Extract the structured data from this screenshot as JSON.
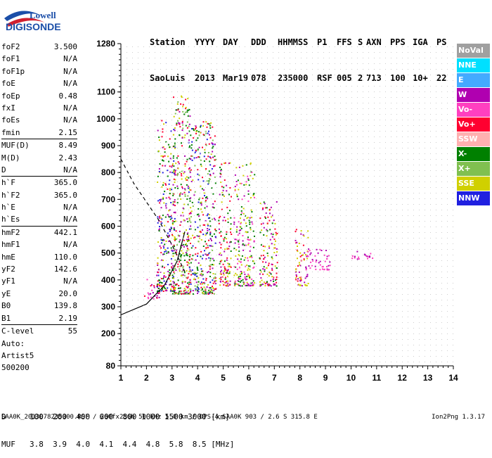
{
  "logo": {
    "line1": "Lowell",
    "line2": "DIGISONDE"
  },
  "header": {
    "labels": [
      "Station",
      "YYYY",
      "DAY",
      "DDD",
      "HHMMSS",
      "P1",
      "FFS",
      "S",
      "AXN",
      "PPS",
      "IGA",
      "PS"
    ],
    "values": [
      "SaoLuis",
      "2013",
      "Mar19",
      "078",
      "235000",
      "RSF",
      "005",
      "2",
      "713",
      "100",
      "10+",
      "22"
    ]
  },
  "params": [
    {
      "name": "foF2",
      "value": "3.500"
    },
    {
      "name": "foF1",
      "value": "N/A"
    },
    {
      "name": "foF1p",
      "value": "N/A"
    },
    {
      "name": "foE",
      "value": "N/A"
    },
    {
      "name": "foEp",
      "value": "0.48"
    },
    {
      "name": "fxI",
      "value": "N/A"
    },
    {
      "name": "foEs",
      "value": "N/A"
    },
    {
      "name": "fmin",
      "value": "2.15"
    },
    {
      "name": "MUF(D)",
      "value": "8.49",
      "sep": true
    },
    {
      "name": "M(D)",
      "value": "2.43"
    },
    {
      "name": "D",
      "value": "N/A"
    },
    {
      "name": "h`F",
      "value": "365.0",
      "sep": true
    },
    {
      "name": "h`F2",
      "value": "365.0"
    },
    {
      "name": "h`E",
      "value": "N/A"
    },
    {
      "name": "h`Es",
      "value": "N/A"
    },
    {
      "name": "hmF2",
      "value": "442.1",
      "sep": true
    },
    {
      "name": "hmF1",
      "value": "N/A"
    },
    {
      "name": "hmE",
      "value": "110.0"
    },
    {
      "name": "yF2",
      "value": "142.6"
    },
    {
      "name": "yF1",
      "value": "N/A"
    },
    {
      "name": "yE",
      "value": "20.0"
    },
    {
      "name": "B0",
      "value": "139.8"
    },
    {
      "name": "B1",
      "value": "2.19"
    },
    {
      "name": "C-level",
      "value": "55",
      "sep": true
    }
  ],
  "auto": {
    "line1": "Auto:",
    "line2": "Artist5",
    "line3": "500200"
  },
  "dtable": {
    "row1_label": "D",
    "row1_values": "100  200  400  600  800 1000 1500 3000 [km]",
    "row2_label": "MUF",
    "row2_values": "3.8  3.9  4.0  4.1  4.4  4.8  5.8  8.5 [MHz]"
  },
  "footer": {
    "left": "SAA0K_2013078235000.RSF / 260fx256h 50 kHz 5.0 km / DPS-4 SAA0K 903 / 2.6 S 315.8 E",
    "right": "Ion2Png 1.3.17"
  },
  "legend": [
    {
      "label": "NoVal",
      "color": "#a0a0a0",
      "text_color": "#ffffff"
    },
    {
      "label": "NNE",
      "color": "#00e0ff",
      "text_color": "#ffffff"
    },
    {
      "label": "E",
      "color": "#44aaff",
      "text_color": "#ffffff"
    },
    {
      "label": "W",
      "color": "#b000b0",
      "text_color": "#ffffff"
    },
    {
      "label": "Vo-",
      "color": "#ff40c0",
      "text_color": "#ffffff"
    },
    {
      "label": "Vo+",
      "color": "#ff0030",
      "text_color": "#ffffff"
    },
    {
      "label": "SSW",
      "color": "#ffb0b0",
      "text_color": "#ffffff"
    },
    {
      "label": "X-",
      "color": "#008000",
      "text_color": "#ffffff"
    },
    {
      "label": "X+",
      "color": "#80c050",
      "text_color": "#ffffff"
    },
    {
      "label": "SSE",
      "color": "#d0d000",
      "text_color": "#ffffff"
    },
    {
      "label": "NNW",
      "color": "#2020e0",
      "text_color": "#ffffff"
    }
  ],
  "chart_data": {
    "type": "scatter",
    "xlabel": "",
    "ylabel": "",
    "xlim": [
      1,
      14
    ],
    "ylim": [
      80,
      1280
    ],
    "x_ticks": [
      1,
      2,
      3,
      4,
      5,
      6,
      7,
      8,
      9,
      10,
      11,
      12,
      13,
      14
    ],
    "y_ticks": [
      80,
      200,
      300,
      400,
      500,
      600,
      700,
      800,
      900,
      1000,
      1100,
      1280
    ],
    "grid": false,
    "clusters": [
      {
        "x": [
          1.9,
          2.5
        ],
        "y": [
          330,
          420
        ],
        "colors": [
          "#ff0030",
          "#b000b0",
          "#ff40c0"
        ]
      },
      {
        "x": [
          2.4,
          3.1
        ],
        "y": [
          360,
          1000
        ],
        "colors": [
          "#008000",
          "#d0d000",
          "#b000b0",
          "#ff0030",
          "#2020e0"
        ]
      },
      {
        "x": [
          3.0,
          3.7
        ],
        "y": [
          350,
          1100
        ],
        "colors": [
          "#008000",
          "#d0d000",
          "#b000b0",
          "#ff0030",
          "#80c050"
        ]
      },
      {
        "x": [
          3.6,
          4.7
        ],
        "y": [
          350,
          1000
        ],
        "colors": [
          "#008000",
          "#d0d000",
          "#b000b0",
          "#ff0030",
          "#80c050",
          "#2020e0"
        ]
      },
      {
        "x": [
          4.8,
          5.3
        ],
        "y": [
          380,
          840
        ],
        "colors": [
          "#d0d000",
          "#b000b0",
          "#008000",
          "#ff0030"
        ]
      },
      {
        "x": [
          5.4,
          6.2
        ],
        "y": [
          380,
          840
        ],
        "colors": [
          "#d0d000",
          "#b000b0",
          "#ff40c0",
          "#008000"
        ]
      },
      {
        "x": [
          6.4,
          7.1
        ],
        "y": [
          380,
          700
        ],
        "colors": [
          "#d0d000",
          "#b000b0",
          "#ff0030",
          "#008000"
        ]
      },
      {
        "x": [
          7.8,
          8.3
        ],
        "y": [
          380,
          600
        ],
        "colors": [
          "#b000b0",
          "#ff0030",
          "#d0d000"
        ]
      },
      {
        "x": [
          8.2,
          9.2
        ],
        "y": [
          440,
          520
        ],
        "colors": [
          "#b000b0",
          "#ff40c0"
        ]
      },
      {
        "x": [
          10.0,
          11.0
        ],
        "y": [
          480,
          510
        ],
        "colors": [
          "#b000b0",
          "#ff40c0"
        ]
      }
    ],
    "traces": [
      {
        "name": "O-trace (solid)",
        "x": [
          1.0,
          2.0,
          2.7,
          3.2,
          3.5
        ],
        "y": [
          270,
          310,
          380,
          470,
          580
        ]
      },
      {
        "name": "X-trace (dashed)",
        "x": [
          1.0,
          1.5,
          2.0,
          2.5,
          3.0,
          3.5
        ],
        "y": [
          850,
          760,
          690,
          620,
          530,
          430
        ]
      }
    ]
  }
}
